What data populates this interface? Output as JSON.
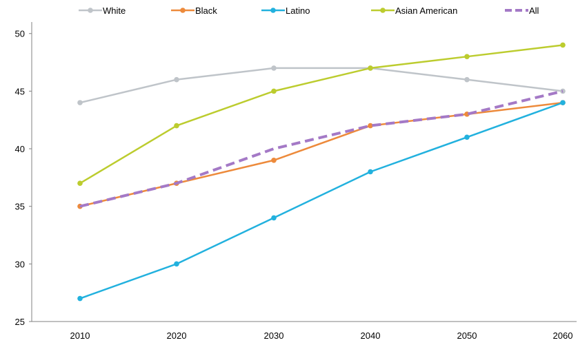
{
  "chart_data": {
    "type": "line",
    "x": [
      2010,
      2020,
      2030,
      2040,
      2050,
      2060
    ],
    "xlabels": [
      "2010",
      "2020",
      "2030",
      "2040",
      "2050",
      "2060"
    ],
    "ylim": [
      25,
      51
    ],
    "yticks": [
      25,
      30,
      35,
      40,
      45,
      50
    ],
    "ylabels": [
      "25",
      "30",
      "35",
      "40",
      "45",
      "50"
    ],
    "grid": false,
    "legend_position": "top",
    "series": [
      {
        "name": "White",
        "color": "#BFC4C9",
        "dashed": false,
        "values": [
          44,
          46,
          47,
          47,
          46,
          45
        ]
      },
      {
        "name": "Black",
        "color": "#ED8A3B",
        "dashed": false,
        "values": [
          35,
          37,
          39,
          42,
          43,
          44
        ]
      },
      {
        "name": "Latino",
        "color": "#22B1DE",
        "dashed": false,
        "values": [
          27,
          30,
          34,
          38,
          41,
          44
        ]
      },
      {
        "name": "Asian American",
        "color": "#BCCC2E",
        "dashed": false,
        "values": [
          37,
          42,
          45,
          47,
          48,
          49
        ]
      },
      {
        "name": "All",
        "color": "#A479C6",
        "dashed": true,
        "values": [
          35,
          37,
          40,
          42,
          43,
          45
        ]
      }
    ]
  }
}
